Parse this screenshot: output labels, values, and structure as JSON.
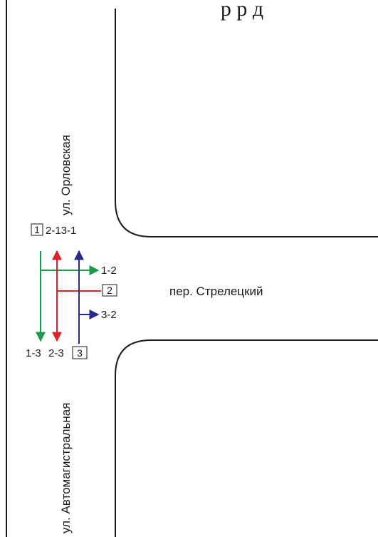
{
  "header": {
    "fragment": "р р д"
  },
  "streets": {
    "vertical_top": "ул. Орловская",
    "vertical_bottom": "ул. Автомагистральная",
    "horizontal": "пер. Стрелецкий"
  },
  "phases": {
    "box1": "1",
    "box2": "2",
    "box3": "3"
  },
  "movements": {
    "top": "2-13-1",
    "right_1_2": "1-2",
    "right_3_2": "3-2",
    "bottom_1_3": "1-3",
    "bottom_2_3": "2-3"
  },
  "colors": {
    "green": "#1a9a4a",
    "red": "#e0202a",
    "blue": "#2a2a8a",
    "road": "#1a1a1a"
  }
}
